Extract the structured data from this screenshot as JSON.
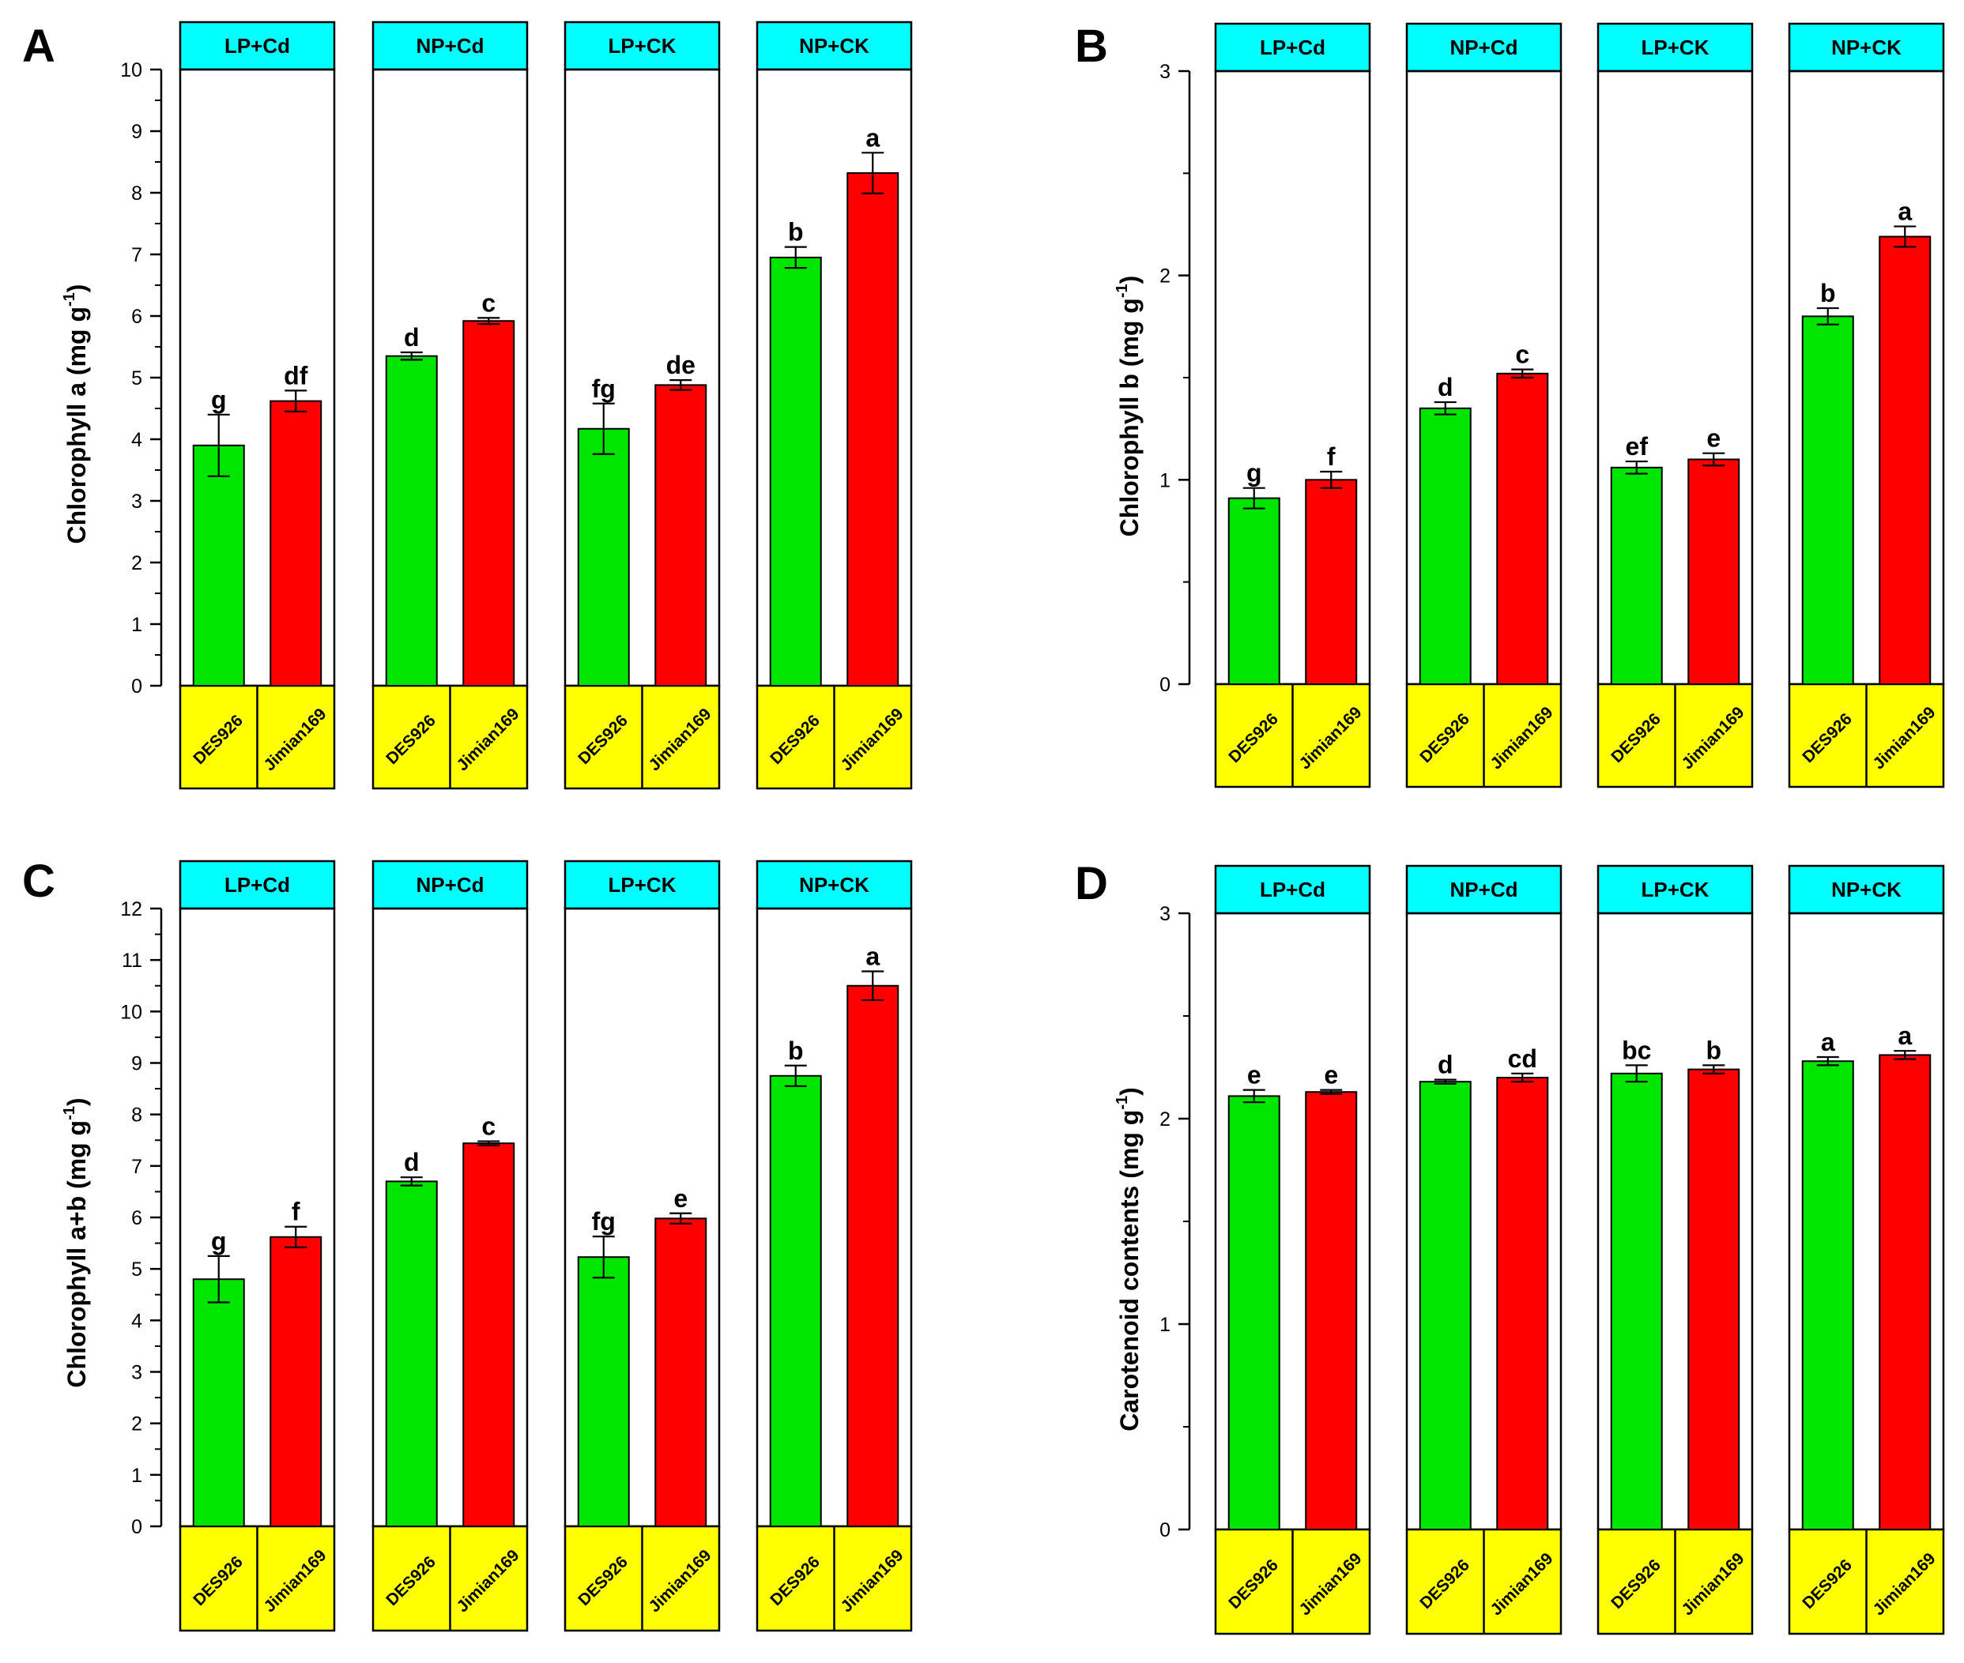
{
  "chart_data": [
    {
      "panel": "A",
      "type": "bar",
      "ylabel": "Chlorophyll a (mg g",
      "ylabel_sup": "-1",
      "ylabel_close": ")",
      "ylim": [
        0,
        10
      ],
      "yticks": [
        "0",
        "1",
        "2",
        "3",
        "4",
        "5",
        "6",
        "7",
        "8",
        "9",
        "10"
      ],
      "groups": [
        {
          "label": "LP+Cd",
          "bars": [
            {
              "cultivar": "DES926",
              "value": 3.9,
              "err": 0.5,
              "letter": "g"
            },
            {
              "cultivar": "Jimian169",
              "value": 4.62,
              "err": 0.17,
              "letter": "df"
            }
          ]
        },
        {
          "label": "NP+Cd",
          "bars": [
            {
              "cultivar": "DES926",
              "value": 5.35,
              "err": 0.06,
              "letter": "d"
            },
            {
              "cultivar": "Jimian169",
              "value": 5.92,
              "err": 0.05,
              "letter": "c"
            }
          ]
        },
        {
          "label": "LP+CK",
          "bars": [
            {
              "cultivar": "DES926",
              "value": 4.17,
              "err": 0.41,
              "letter": "fg"
            },
            {
              "cultivar": "Jimian169",
              "value": 4.88,
              "err": 0.08,
              "letter": "de"
            }
          ]
        },
        {
          "label": "NP+CK",
          "bars": [
            {
              "cultivar": "DES926",
              "value": 6.95,
              "err": 0.17,
              "letter": "b"
            },
            {
              "cultivar": "Jimian169",
              "value": 8.32,
              "err": 0.33,
              "letter": "a"
            }
          ]
        }
      ]
    },
    {
      "panel": "B",
      "type": "bar",
      "ylabel": "Chlorophyll b (mg g",
      "ylabel_sup": "-1",
      "ylabel_close": ")",
      "ylim": [
        0,
        3
      ],
      "yticks": [
        "0",
        "1",
        "2",
        "3"
      ],
      "groups": [
        {
          "label": "LP+Cd",
          "bars": [
            {
              "cultivar": "DES926",
              "value": 0.91,
              "err": 0.05,
              "letter": "g"
            },
            {
              "cultivar": "Jimian169",
              "value": 1.0,
              "err": 0.04,
              "letter": "f"
            }
          ]
        },
        {
          "label": "NP+Cd",
          "bars": [
            {
              "cultivar": "DES926",
              "value": 1.35,
              "err": 0.03,
              "letter": "d"
            },
            {
              "cultivar": "Jimian169",
              "value": 1.52,
              "err": 0.02,
              "letter": "c"
            }
          ]
        },
        {
          "label": "LP+CK",
          "bars": [
            {
              "cultivar": "DES926",
              "value": 1.06,
              "err": 0.03,
              "letter": "ef"
            },
            {
              "cultivar": "Jimian169",
              "value": 1.1,
              "err": 0.03,
              "letter": "e"
            }
          ]
        },
        {
          "label": "NP+CK",
          "bars": [
            {
              "cultivar": "DES926",
              "value": 1.8,
              "err": 0.04,
              "letter": "b"
            },
            {
              "cultivar": "Jimian169",
              "value": 2.19,
              "err": 0.05,
              "letter": "a"
            }
          ]
        }
      ]
    },
    {
      "panel": "C",
      "type": "bar",
      "ylabel": "Chlorophyll a+b (mg g",
      "ylabel_sup": "-1",
      "ylabel_close": ")",
      "ylim": [
        0,
        12
      ],
      "yticks": [
        "0",
        "1",
        "2",
        "3",
        "4",
        "5",
        "6",
        "7",
        "8",
        "9",
        "10",
        "11",
        "12"
      ],
      "groups": [
        {
          "label": "LP+Cd",
          "bars": [
            {
              "cultivar": "DES926",
              "value": 4.8,
              "err": 0.45,
              "letter": "g"
            },
            {
              "cultivar": "Jimian169",
              "value": 5.62,
              "err": 0.2,
              "letter": "f"
            }
          ]
        },
        {
          "label": "NP+Cd",
          "bars": [
            {
              "cultivar": "DES926",
              "value": 6.7,
              "err": 0.08,
              "letter": "d"
            },
            {
              "cultivar": "Jimian169",
              "value": 7.44,
              "err": 0.04,
              "letter": "c"
            }
          ]
        },
        {
          "label": "LP+CK",
          "bars": [
            {
              "cultivar": "DES926",
              "value": 5.23,
              "err": 0.4,
              "letter": "fg"
            },
            {
              "cultivar": "Jimian169",
              "value": 5.98,
              "err": 0.1,
              "letter": "e"
            }
          ]
        },
        {
          "label": "NP+CK",
          "bars": [
            {
              "cultivar": "DES926",
              "value": 8.75,
              "err": 0.2,
              "letter": "b"
            },
            {
              "cultivar": "Jimian169",
              "value": 10.5,
              "err": 0.28,
              "letter": "a"
            }
          ]
        }
      ]
    },
    {
      "panel": "D",
      "type": "bar",
      "ylabel": "Carotenoid contents (mg g",
      "ylabel_sup": "-1",
      "ylabel_close": ")",
      "ylim": [
        0,
        3
      ],
      "yticks": [
        "0",
        "1",
        "2",
        "3"
      ],
      "groups": [
        {
          "label": "LP+Cd",
          "bars": [
            {
              "cultivar": "DES926",
              "value": 2.11,
              "err": 0.03,
              "letter": "e"
            },
            {
              "cultivar": "Jimian169",
              "value": 2.13,
              "err": 0.01,
              "letter": "e"
            }
          ]
        },
        {
          "label": "NP+Cd",
          "bars": [
            {
              "cultivar": "DES926",
              "value": 2.18,
              "err": 0.01,
              "letter": "d"
            },
            {
              "cultivar": "Jimian169",
              "value": 2.2,
              "err": 0.02,
              "letter": "cd"
            }
          ]
        },
        {
          "label": "LP+CK",
          "bars": [
            {
              "cultivar": "DES926",
              "value": 2.22,
              "err": 0.04,
              "letter": "bc"
            },
            {
              "cultivar": "Jimian169",
              "value": 2.24,
              "err": 0.02,
              "letter": "b"
            }
          ]
        },
        {
          "label": "NP+CK",
          "bars": [
            {
              "cultivar": "DES926",
              "value": 2.28,
              "err": 0.02,
              "letter": "a"
            },
            {
              "cultivar": "Jimian169",
              "value": 2.31,
              "err": 0.02,
              "letter": "a"
            }
          ]
        }
      ]
    }
  ],
  "colors": {
    "DES926": "#00e600",
    "Jimian169": "#ff0000",
    "header": "#00ffff",
    "footer": "#ffff00",
    "frame": "#000000"
  }
}
